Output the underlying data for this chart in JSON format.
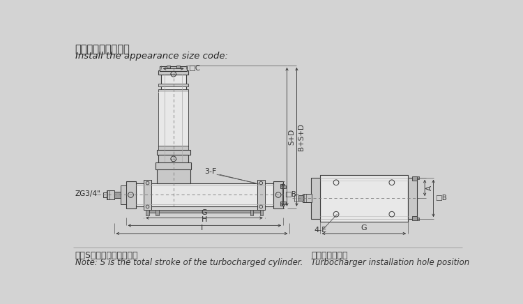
{
  "bg_color": "#d3d3d3",
  "title_cn": "安装外观尺寸代码：",
  "title_en": "Install the appearance size code:",
  "note_cn": "注：S为增压缸的总行程。",
  "note_en": "Note: S is the total stroke of the turbocharged cylinder.",
  "note2_cn": "增压器安装孔位",
  "note2_en": "Turbocharger installation hole position",
  "line_color": "#3a3a3a",
  "body_fill": "#e8e8e8",
  "body_mid": "#c8c8c8",
  "body_dark": "#a0a0a0",
  "dim_color": "#3a3a3a"
}
